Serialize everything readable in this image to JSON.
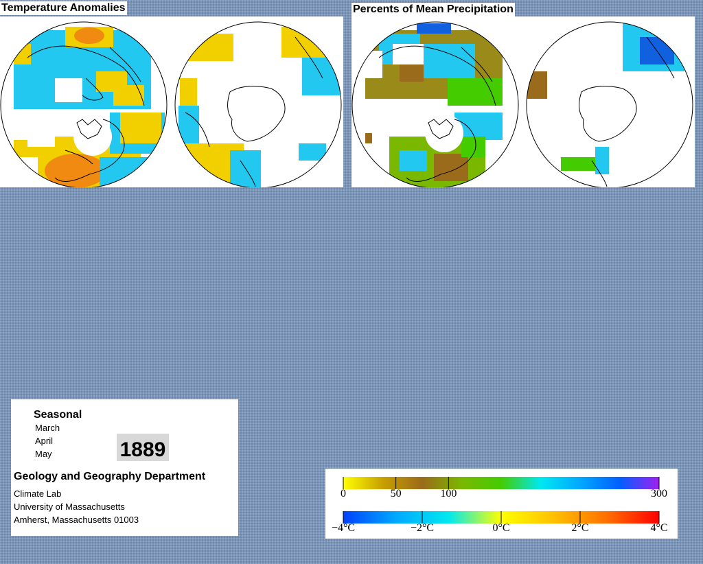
{
  "titles": {
    "temperature": "Temperature Anomalies",
    "precipitation": "Percents of Mean Precipitation"
  },
  "info": {
    "heading": "Seasonal",
    "months": [
      "March",
      "April",
      "May"
    ],
    "year": "1889",
    "department": "Geology and Geography Department",
    "lines": [
      "Climate Lab",
      "University of Massachusetts",
      "Amherst, Massachusetts 01003"
    ]
  },
  "legend": {
    "precipitation": {
      "ticks": [
        0,
        50,
        100,
        300
      ],
      "labels": [
        "0",
        "50",
        "100",
        "300"
      ],
      "range": [
        0,
        300
      ],
      "colors": [
        "#ffff00",
        "#c8a000",
        "#9a6b1a",
        "#7ab800",
        "#44cc00",
        "#00e8f0",
        "#00a8ff",
        "#0060ff",
        "#a020f0"
      ]
    },
    "temperature": {
      "ticks": [
        -4,
        -2,
        0,
        2,
        4
      ],
      "labels": [
        "−4°C",
        "−2°C",
        "0°C",
        "2°C",
        "4°C"
      ],
      "range": [
        -4,
        4
      ],
      "colors": [
        "#0040ff",
        "#00a8ff",
        "#00e8f0",
        "#ffff00",
        "#ffc000",
        "#ff7000",
        "#ff0000"
      ]
    }
  },
  "map_colors": {
    "cold": "#22c8ef",
    "warm": "#f2d000",
    "hot": "#f08a10",
    "dry": "#9a6b1a",
    "mid": "#7ab800",
    "wet": "#22c8ef",
    "verywet": "#1060e0"
  }
}
